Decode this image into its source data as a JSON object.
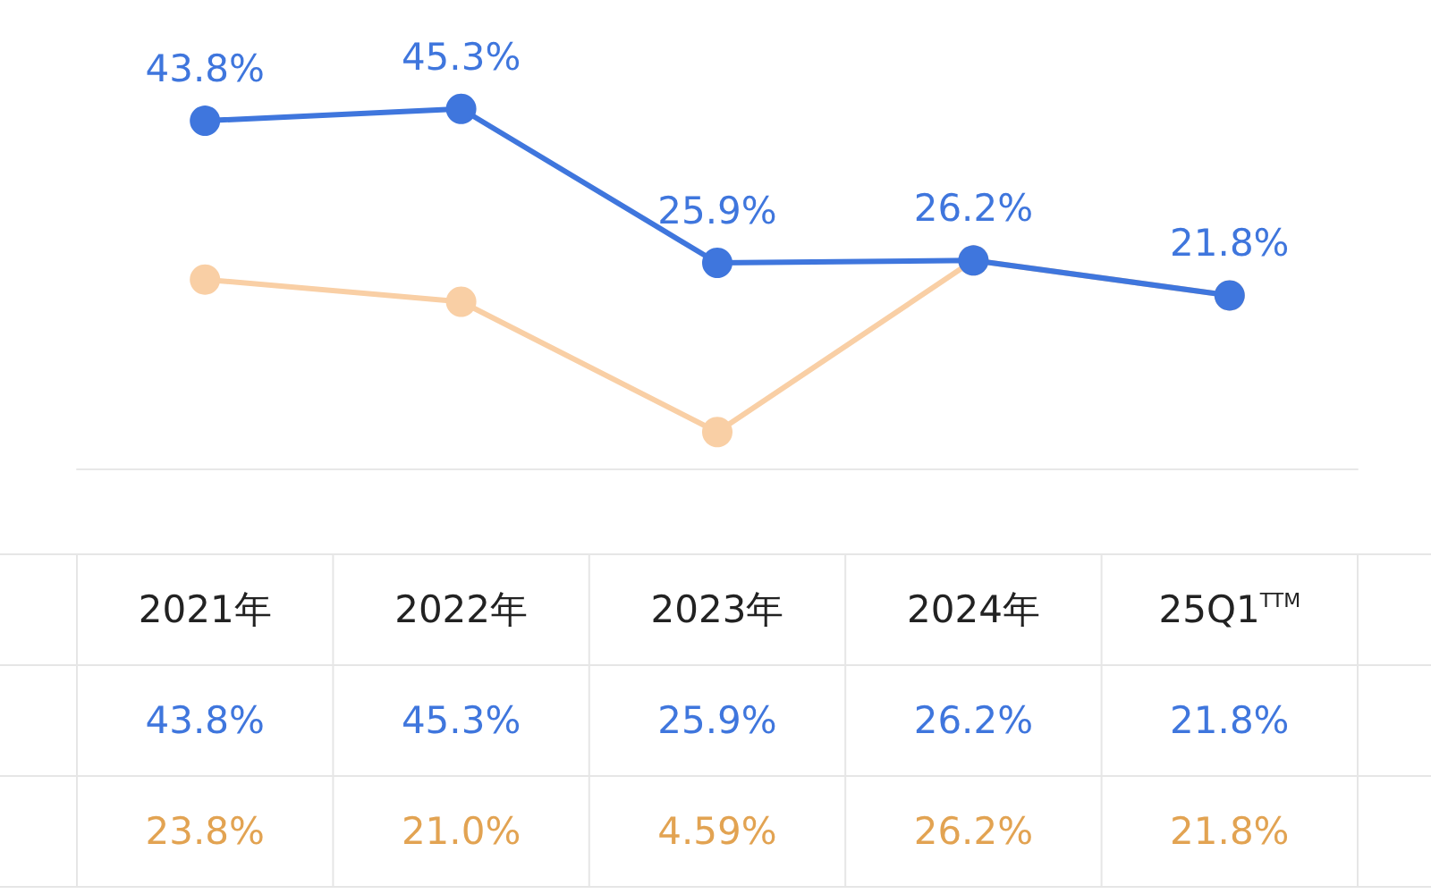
{
  "chart_data": {
    "type": "line",
    "categories": [
      "2021年",
      "2022年",
      "2023年",
      "2024年",
      "25Q1$^{TTM}$"
    ],
    "series": [
      {
        "color": "#3f76dd",
        "values": [
          43.8,
          45.3,
          25.9,
          26.2,
          21.8
        ],
        "value_labels": [
          "43.8%",
          "45.3%",
          "25.9%",
          "26.2%",
          "21.8%"
        ]
      },
      {
        "color": "#f9cfa5",
        "values": [
          23.8,
          21.0,
          4.59,
          26.2,
          21.8
        ],
        "value_labels": [
          "23.8%",
          "21.0%",
          "4.59%",
          "26.2%",
          "21.8%"
        ]
      }
    ],
    "grid": false,
    "marker": "circle",
    "line_style": "solid",
    "data_labels": true
  }
}
